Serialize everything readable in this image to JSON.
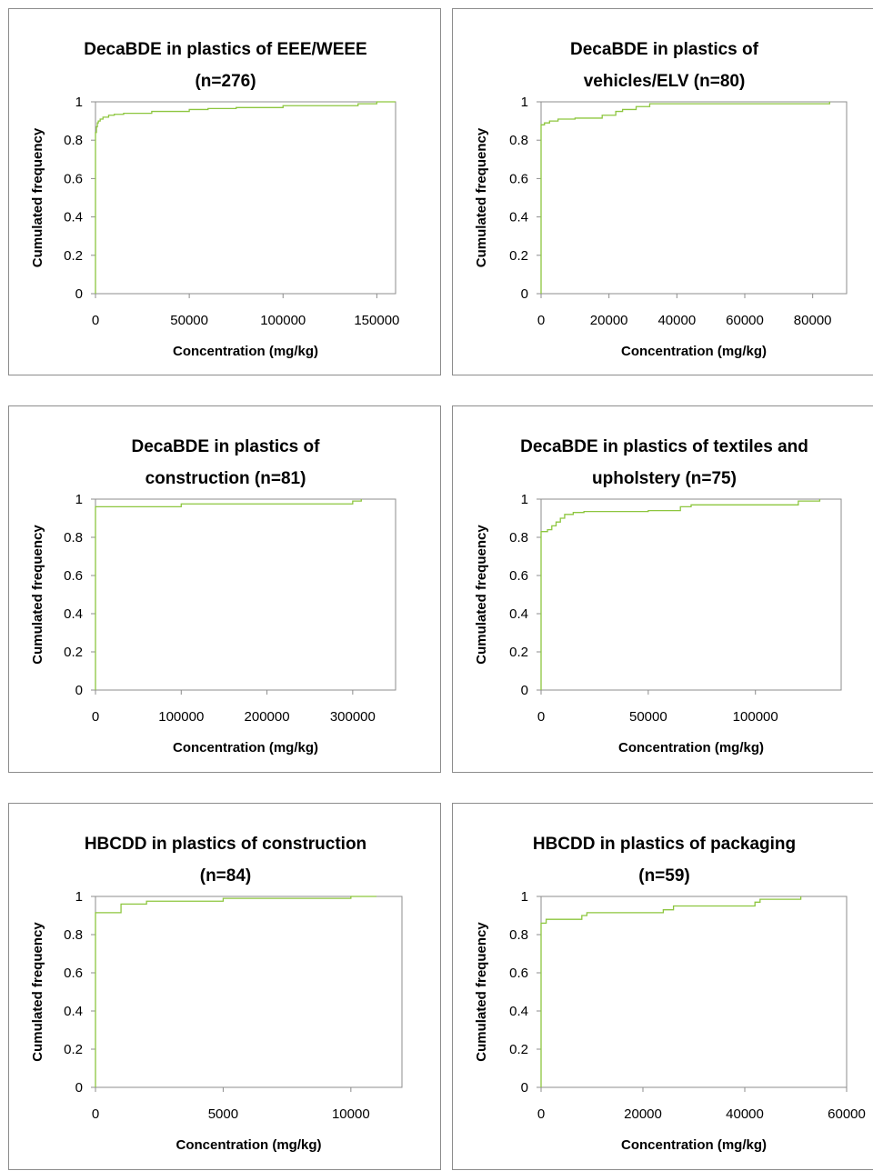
{
  "chart_data": [
    {
      "type": "line",
      "title": [
        "DecaBDE in plastics of EEE/WEEE",
        "(n=276)"
      ],
      "xlabel": "Concentration (mg/kg)",
      "ylabel": "Cumulated frequency",
      "xlim": [
        0,
        160000
      ],
      "ylim": [
        0,
        1
      ],
      "xticks": [
        0,
        50000,
        100000,
        150000
      ],
      "yticks": [
        0,
        0.2,
        0.4,
        0.6,
        0.8,
        1
      ],
      "ytick_labels": [
        "0",
        "0.2",
        "0.4",
        "0.6",
        "0.8",
        "1"
      ],
      "grid": false,
      "color": "#8dc63f",
      "series": [
        {
          "x": [
            0,
            0,
            500,
            1000,
            1500,
            2500,
            4000,
            7000,
            10000,
            15000,
            30000,
            50000,
            60000,
            75000,
            100000,
            140000,
            150000,
            160000
          ],
          "y": [
            0,
            0.84,
            0.87,
            0.89,
            0.9,
            0.91,
            0.92,
            0.93,
            0.935,
            0.94,
            0.95,
            0.96,
            0.965,
            0.97,
            0.98,
            0.99,
            1.0,
            1.0
          ]
        }
      ]
    },
    {
      "type": "line",
      "title": [
        "DecaBDE in plastics of",
        "vehicles/ELV  (n=80)"
      ],
      "xlabel": "Concentration (mg/kg)",
      "ylabel": "Cumulated frequency",
      "xlim": [
        0,
        90000
      ],
      "ylim": [
        0,
        1
      ],
      "xticks": [
        0,
        20000,
        40000,
        60000,
        80000
      ],
      "yticks": [
        0,
        0.2,
        0.4,
        0.6,
        0.8,
        1
      ],
      "ytick_labels": [
        "0",
        "0.2",
        "0.4",
        "0.6",
        "0.8",
        "1"
      ],
      "grid": false,
      "color": "#8dc63f",
      "series": [
        {
          "x": [
            0,
            0,
            1000,
            2500,
            5000,
            10000,
            18000,
            22000,
            24000,
            28000,
            32000,
            85000
          ],
          "y": [
            0,
            0.88,
            0.89,
            0.9,
            0.91,
            0.915,
            0.93,
            0.95,
            0.96,
            0.975,
            0.99,
            1.0
          ]
        }
      ]
    },
    {
      "type": "line",
      "title": [
        "DecaBDE in plastics of",
        "construction (n=81)"
      ],
      "xlabel": "Concentration (mg/kg)",
      "ylabel": "Cumulated frequency",
      "xlim": [
        0,
        350000
      ],
      "ylim": [
        0,
        1
      ],
      "xticks": [
        0,
        100000,
        200000,
        300000
      ],
      "yticks": [
        0,
        0.2,
        0.4,
        0.6,
        0.8,
        1
      ],
      "ytick_labels": [
        "0",
        "0.2",
        "0.4",
        "0.6",
        "0.8",
        "1"
      ],
      "grid": false,
      "color": "#8dc63f",
      "series": [
        {
          "x": [
            0,
            0,
            100000,
            300000,
            310000
          ],
          "y": [
            0,
            0.96,
            0.975,
            0.99,
            1.0
          ]
        }
      ]
    },
    {
      "type": "line",
      "title": [
        "DecaBDE in plastics of textiles and",
        "upholstery (n=75)"
      ],
      "xlabel": "Concentration (mg/kg)",
      "ylabel": "Cumulated frequency",
      "xlim": [
        0,
        140000
      ],
      "ylim": [
        0,
        1
      ],
      "xticks": [
        0,
        50000,
        100000
      ],
      "yticks": [
        0,
        0.2,
        0.4,
        0.6,
        0.8,
        1
      ],
      "ytick_labels": [
        "0",
        "0.2",
        "0.4",
        "0.6",
        "0.8",
        "1"
      ],
      "grid": false,
      "color": "#8dc63f",
      "series": [
        {
          "x": [
            0,
            0,
            3000,
            5000,
            7000,
            9000,
            11000,
            15000,
            20000,
            50000,
            65000,
            70000,
            120000,
            130000
          ],
          "y": [
            0,
            0.83,
            0.84,
            0.86,
            0.88,
            0.9,
            0.92,
            0.93,
            0.935,
            0.94,
            0.96,
            0.97,
            0.99,
            1.0
          ]
        }
      ]
    },
    {
      "type": "line",
      "title": [
        "HBCDD in plastics of construction",
        "(n=84)"
      ],
      "xlabel": "Concentration (mg/kg)",
      "ylabel": "Cumulated frequency",
      "xlim": [
        0,
        12000
      ],
      "ylim": [
        0,
        1
      ],
      "xticks": [
        0,
        5000,
        10000
      ],
      "yticks": [
        0,
        0.2,
        0.4,
        0.6,
        0.8,
        1
      ],
      "ytick_labels": [
        "0",
        "0.2",
        "0.4",
        "0.6",
        "0.8",
        "1"
      ],
      "grid": false,
      "color": "#8dc63f",
      "series": [
        {
          "x": [
            0,
            0,
            1000,
            2000,
            5000,
            10000,
            11000
          ],
          "y": [
            0,
            0.915,
            0.96,
            0.975,
            0.99,
            1.0,
            1.0
          ]
        }
      ]
    },
    {
      "type": "line",
      "title": [
        "HBCDD in plastics of packaging",
        "(n=59)"
      ],
      "xlabel": "Concentration (mg/kg)",
      "ylabel": "Cumulated frequency",
      "xlim": [
        0,
        60000
      ],
      "ylim": [
        0,
        1
      ],
      "xticks": [
        0,
        20000,
        40000,
        60000
      ],
      "yticks": [
        0,
        0.2,
        0.4,
        0.6,
        0.8,
        1
      ],
      "ytick_labels": [
        "0",
        "0.2",
        "0.4",
        "0.6",
        "0.8",
        "1"
      ],
      "grid": false,
      "color": "#8dc63f",
      "series": [
        {
          "x": [
            0,
            0,
            1000,
            8000,
            9000,
            24000,
            26000,
            42000,
            43000,
            51000
          ],
          "y": [
            0,
            0.86,
            0.88,
            0.9,
            0.915,
            0.93,
            0.95,
            0.97,
            0.985,
            1.0
          ]
        }
      ]
    }
  ]
}
